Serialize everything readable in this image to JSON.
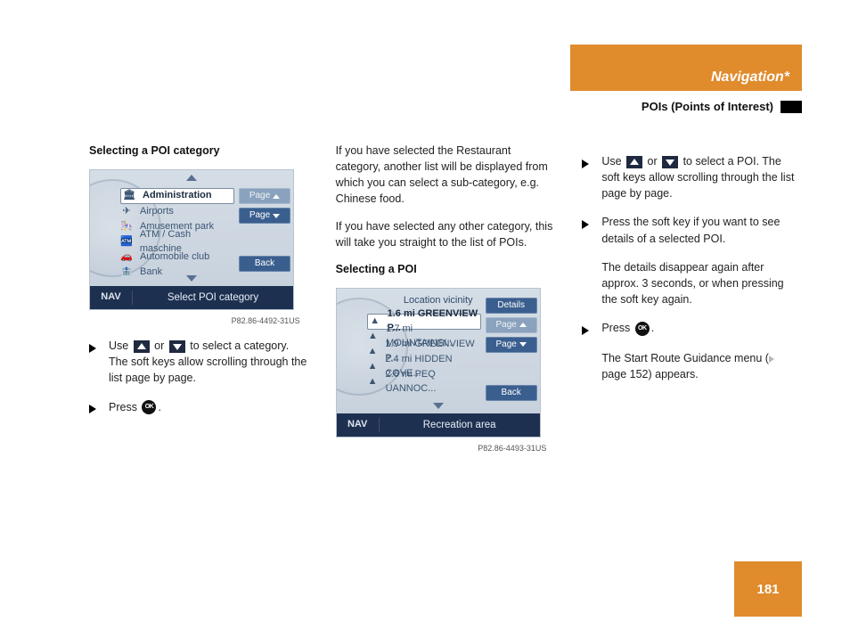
{
  "header": {
    "title": "Navigation*",
    "bg": "#e08b2c"
  },
  "subheader": {
    "title": "POIs (Points of Interest)"
  },
  "pageNumber": "181",
  "col1": {
    "heading": "Selecting a POI category",
    "screenshot": {
      "rows": [
        {
          "icon": "🏛",
          "label": "Administration",
          "selected": true
        },
        {
          "icon": "✈",
          "label": "Airports"
        },
        {
          "icon": "🎠",
          "label": "Amusement park"
        },
        {
          "icon": "🏧",
          "label": "ATM / Cash maschine"
        },
        {
          "icon": "🚗",
          "label": "Automobile club"
        },
        {
          "icon": "🏦",
          "label": "Bank"
        }
      ],
      "softkeys": [
        {
          "label": "Page",
          "arrow": "up",
          "dim": true
        },
        {
          "label": "Page",
          "arrow": "down"
        },
        {
          "label": "Back",
          "spacer_above": true
        }
      ],
      "footer": {
        "nav": "NAV",
        "title": "Select POI category"
      },
      "caption": "P82.86-4492-31US"
    },
    "bullets": [
      {
        "text_parts": [
          "Use ",
          {
            "key": "up"
          },
          " or ",
          {
            "key": "down"
          },
          " to select a category. The ",
          {
            "gap": "Page"
          },
          " soft keys allow scrolling through the list page by page."
        ]
      },
      {
        "text_parts": [
          "Press ",
          {
            "key": "ok"
          },
          "."
        ]
      }
    ]
  },
  "col2": {
    "para1": "If you have selected the Restaurant category, another list will be displayed from which you can select a sub-cate­gory, e.g. Chinese food.",
    "para2": "If you have selected any other catego­ry, this will take you straight to the list of POIs.",
    "heading": "Selecting a POI",
    "screenshot": {
      "title_top": "Location vicinity",
      "rows": [
        {
          "icon": "▲",
          "label": "1.6 mi GREENVIEW P...",
          "selected": true
        },
        {
          "icon": "▲",
          "label": "1.7 mi MOUNTAINSI..."
        },
        {
          "icon": "▲",
          "label": "1.9 mi GREENVIEW P..."
        },
        {
          "icon": "▲",
          "label": "2.4 mi HIDDEN COVE..."
        },
        {
          "icon": "▲",
          "label": "2.6 mi PEQ UANNOC..."
        }
      ],
      "softkeys": [
        {
          "label": "Details"
        },
        {
          "label": "Page",
          "arrow": "up",
          "dim": true
        },
        {
          "label": "Page",
          "arrow": "down"
        },
        {
          "label": "Back",
          "spacer_above": true
        }
      ],
      "footer": {
        "nav": "NAV",
        "title": "Recreation area"
      },
      "caption": "P82.86-4493-31US"
    }
  },
  "col3": {
    "bullets": [
      {
        "text_parts": [
          "Use ",
          {
            "key": "up"
          },
          " or ",
          {
            "key": "down"
          },
          " to select a POI. The ",
          {
            "gap": "Page"
          },
          " soft keys allow scrolling through the list page by page."
        ]
      },
      {
        "text_parts": [
          "Press the ",
          {
            "gap": "Details"
          },
          " soft key if you want to see details of a selected POI."
        ]
      },
      {
        "cont": true,
        "text_parts": [
          "The details disappear again after approx. 3 seconds, or when pressing the ",
          {
            "gap": "Details"
          },
          " soft key again."
        ]
      },
      {
        "text_parts": [
          "Press ",
          {
            "key": "ok"
          },
          "."
        ]
      },
      {
        "cont": true,
        "text_parts": [
          "The Start Route Guidance menu (",
          {
            "pageref": true
          },
          " page 152) appears."
        ]
      }
    ]
  }
}
